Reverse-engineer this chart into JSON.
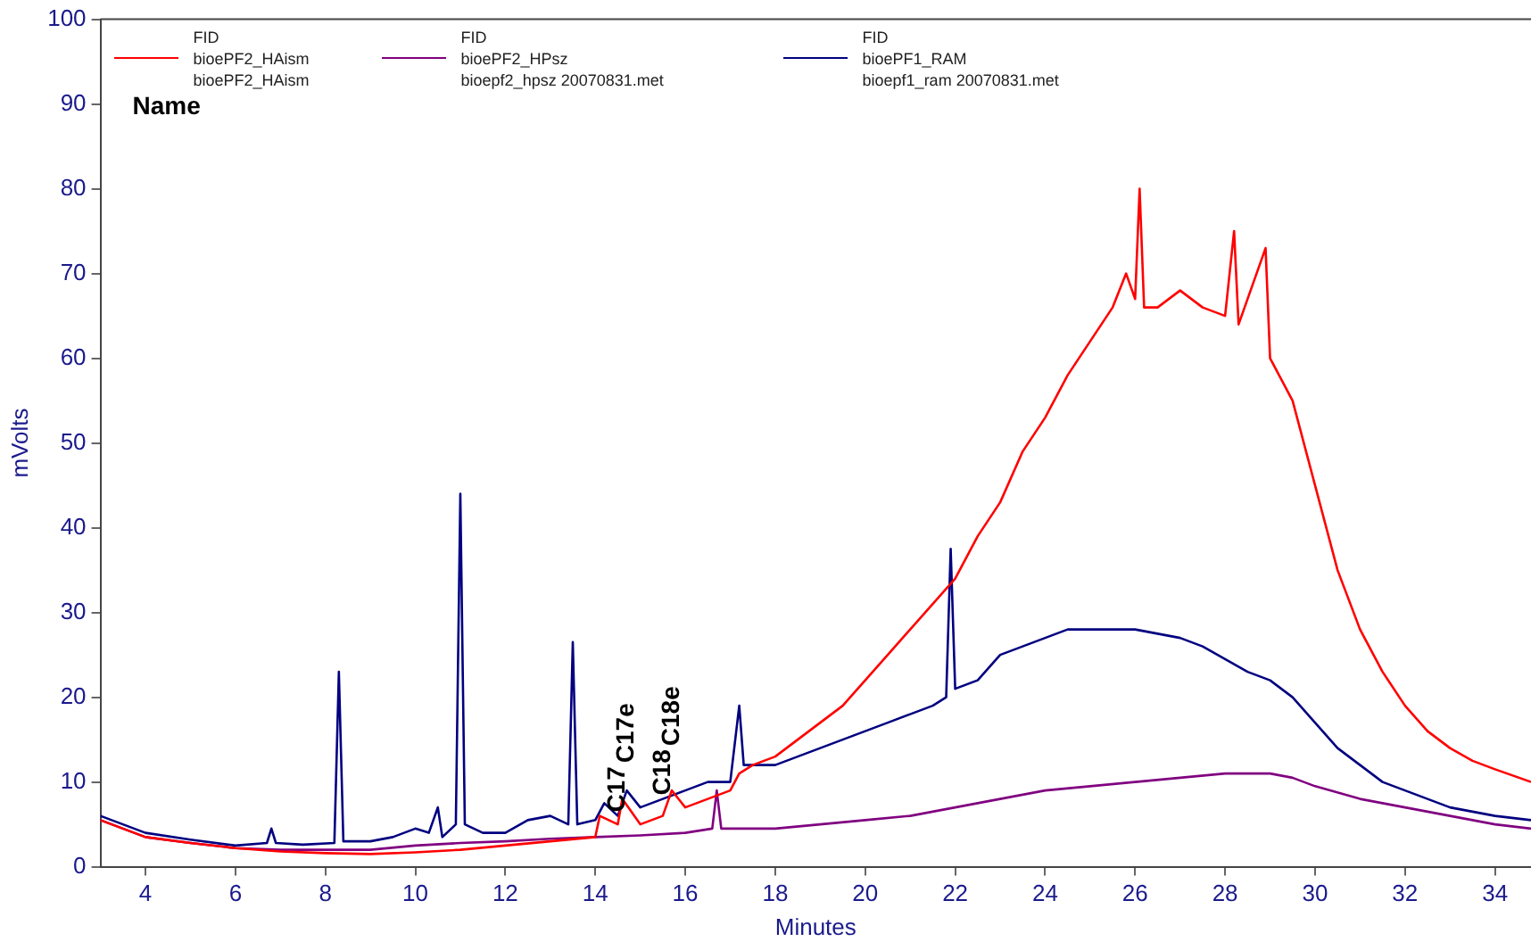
{
  "chart_data": {
    "type": "line",
    "xlabel": "Minutes",
    "ylabel": "mVolts",
    "xlim": [
      3,
      34.8
    ],
    "ylim": [
      0,
      100
    ],
    "xticks": [
      4,
      6,
      8,
      10,
      12,
      14,
      16,
      18,
      20,
      22,
      24,
      26,
      28,
      30,
      32,
      34
    ],
    "yticks": [
      0,
      10,
      20,
      30,
      40,
      50,
      60,
      70,
      80,
      90,
      100
    ],
    "grid": false,
    "legend": "top left",
    "marker": "none",
    "line_style": "solid",
    "series": [
      {
        "name": "bioePF2_HAism",
        "color": "#ff0000",
        "x": [
          3,
          4,
          5,
          6,
          7,
          8,
          9,
          10,
          11,
          12,
          13,
          14,
          14.1,
          14.5,
          14.6,
          15,
          15.5,
          15.7,
          16,
          16.5,
          17,
          17.2,
          17.5,
          18,
          18.5,
          19,
          19.5,
          20,
          20.5,
          21,
          21.5,
          22,
          22.5,
          23,
          23.5,
          24,
          24.5,
          25,
          25.5,
          25.8,
          26,
          26.1,
          26.2,
          26.5,
          27,
          27.5,
          28,
          28.2,
          28.3,
          28.9,
          29,
          29.5,
          30,
          30.5,
          31,
          31.5,
          32,
          32.5,
          33,
          33.5,
          34,
          34.8
        ],
        "values": [
          5.5,
          3.5,
          2.8,
          2.2,
          1.8,
          1.6,
          1.5,
          1.7,
          2,
          2.5,
          3,
          3.5,
          6,
          5,
          8,
          5,
          6,
          9,
          7,
          8,
          9,
          11,
          12,
          13,
          15,
          17,
          19,
          22,
          25,
          28,
          31,
          34,
          39,
          43,
          49,
          53,
          58,
          62,
          66,
          70,
          67,
          80,
          66,
          66,
          68,
          66,
          65,
          75,
          64,
          73,
          60,
          55,
          45,
          35,
          28,
          23,
          19,
          16,
          14,
          12.5,
          11.5,
          10
        ]
      },
      {
        "name": "bioePF2_HPsz",
        "color": "#800080",
        "x": [
          3,
          4,
          5,
          6,
          7,
          8,
          9,
          10,
          11,
          12,
          13,
          14,
          15,
          16,
          16.6,
          16.7,
          16.8,
          17,
          18,
          19,
          20,
          21,
          22,
          23,
          24,
          25,
          26,
          27,
          28,
          29,
          29.5,
          30,
          31,
          32,
          33,
          34,
          34.8
        ],
        "values": [
          5.5,
          3.5,
          2.8,
          2.2,
          2,
          2,
          2,
          2.5,
          2.8,
          3,
          3.3,
          3.5,
          3.7,
          4,
          4.5,
          9,
          4.5,
          4.5,
          4.5,
          5,
          5.5,
          6,
          7,
          8,
          9,
          9.5,
          10,
          10.5,
          11,
          11,
          10.5,
          9.5,
          8,
          7,
          6,
          5,
          4.5
        ]
      },
      {
        "name": "bioePF1_RAM",
        "color": "#000080",
        "x": [
          3,
          4,
          5,
          6,
          6.7,
          6.8,
          6.9,
          7.5,
          8.2,
          8.3,
          8.4,
          9,
          9.5,
          10,
          10.3,
          10.5,
          10.6,
          10.9,
          11,
          11.1,
          11.5,
          12,
          12.5,
          13,
          13.4,
          13.5,
          13.6,
          14,
          14.2,
          14.5,
          14.7,
          15,
          15.5,
          16,
          16.5,
          17,
          17.2,
          17.3,
          17.5,
          18,
          18.5,
          19,
          19.5,
          20,
          20.5,
          21,
          21.5,
          21.8,
          21.9,
          22,
          22.5,
          23,
          23.5,
          24,
          24.5,
          25,
          25.5,
          26,
          26.5,
          27,
          27.5,
          28,
          28.5,
          29,
          29.5,
          30,
          30.5,
          31,
          31.5,
          32,
          32.5,
          33,
          33.5,
          34,
          34.8
        ],
        "values": [
          6,
          4,
          3.2,
          2.5,
          2.8,
          4.5,
          2.8,
          2.6,
          2.8,
          23,
          3,
          3,
          3.5,
          4.5,
          4,
          7,
          3.5,
          5,
          44,
          5,
          4,
          4,
          5.5,
          6,
          5,
          26.5,
          5,
          5.5,
          7.5,
          6,
          9,
          7,
          8,
          9,
          10,
          10,
          19,
          12,
          12,
          12,
          13,
          14,
          15,
          16,
          17,
          18,
          19,
          20,
          37.5,
          21,
          22,
          25,
          26,
          27,
          28,
          28,
          28,
          28,
          27.5,
          27,
          26,
          24.5,
          23,
          22,
          20,
          17,
          14,
          12,
          10,
          9,
          8,
          7,
          6.5,
          6,
          5.5
        ]
      }
    ],
    "annotations": [
      "FID",
      "FID",
      "FID",
      "bioePF2_HAism",
      "bioepf2_hpsz 20070831.met",
      "bioepf1_ram 20070831.met",
      "Name",
      {
        "text": "C17",
        "x": 14.5,
        "y": 6
      },
      {
        "text": "C17e",
        "x": 14.7,
        "y": 9
      },
      {
        "text": "C18",
        "x": 15.5,
        "y": 8
      },
      {
        "text": "C18e",
        "x": 15.7,
        "y": 9
      }
    ]
  }
}
